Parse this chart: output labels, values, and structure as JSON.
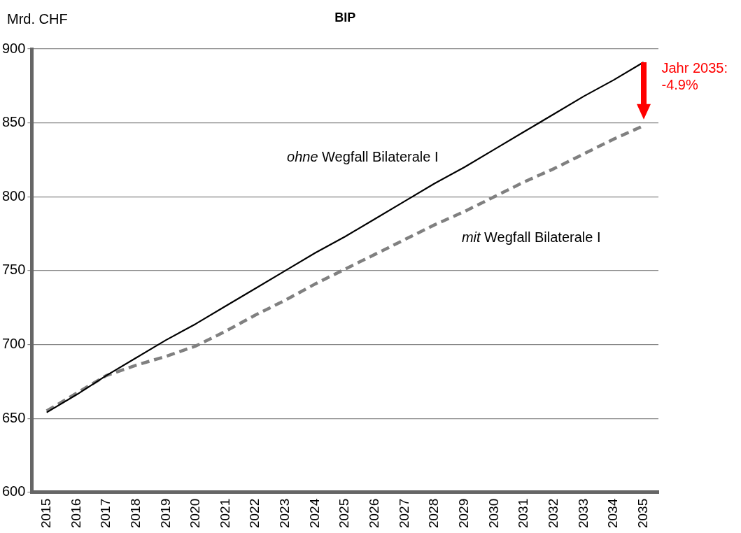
{
  "chart_data": {
    "type": "line",
    "title": "BIP",
    "ylabel": "Mrd. CHF",
    "categories": [
      "2015",
      "2016",
      "2017",
      "2018",
      "2019",
      "2020",
      "2021",
      "2022",
      "2023",
      "2024",
      "2025",
      "2026",
      "2027",
      "2028",
      "2029",
      "2030",
      "2031",
      "2032",
      "2033",
      "2034",
      "2035"
    ],
    "series": [
      {
        "color": "#000000",
        "line_style": "solid",
        "values": [
          654,
          666,
          679,
          691,
          703,
          714,
          726,
          738,
          750,
          762,
          773,
          785,
          797,
          809,
          820,
          832,
          844,
          856,
          868,
          879,
          891
        ]
      },
      {
        "color": "#808080",
        "line_style": "dashed",
        "values": [
          655,
          667,
          679,
          686,
          692,
          699,
          709,
          720,
          730,
          741,
          751,
          761,
          771,
          781,
          790,
          800,
          810,
          819,
          829,
          839,
          848
        ]
      }
    ],
    "annotations": [
      "ohne Wegfall Bilaterale I",
      "mit Wegfall Bilaterale I",
      "Jahr 2035:\n-4.9%"
    ],
    "ylim": [
      600,
      900
    ],
    "yticks": [
      600,
      650,
      700,
      750,
      800,
      850,
      900
    ],
    "grid": "y",
    "legend": false,
    "marker": "none"
  }
}
